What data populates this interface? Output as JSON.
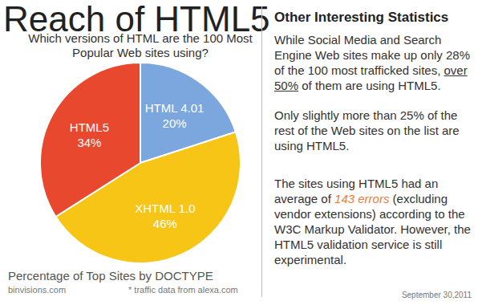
{
  "chart_data": {
    "type": "pie",
    "title": "Reach of HTML5",
    "subtitle": "Which versions of HTML are the 100 Most Popular Web sites using?",
    "categories": [
      "HTML 4.01",
      "XHTML 1.0",
      "HTML5"
    ],
    "values": [
      20,
      46,
      34
    ],
    "value_labels": [
      "20%",
      "46%",
      "34%"
    ],
    "colors": [
      "#7ba7de",
      "#f6c516",
      "#e8482d"
    ],
    "data_labels": true,
    "annotations": [
      "Percentage of Top Sites by DOCTYPE",
      "binvisions.com",
      "* traffic data from alexa.com"
    ]
  },
  "sidebar": {
    "title": "Other Interesting Statistics",
    "paragraphs": [
      [
        {
          "text": "While Social Media and Search Engine Web sites make up only 28% of the 100 most trafficked sites, "
        },
        {
          "text": "over 50%",
          "underline": true
        },
        {
          "text": " of them are using HTML5."
        }
      ],
      [
        {
          "text": "Only slightly more than 25% of the rest of the Web sites on the list are using HTML5."
        }
      ],
      [
        {
          "text": "The sites using HTML5 had an average of "
        },
        {
          "text": "143 errors",
          "color": "#f07a3a"
        },
        {
          "text": " (excluding vendor extensions) according to the W3C Markup Validator. However, the HTML5 validation service is still experimental."
        }
      ]
    ],
    "date": "September 30,2011"
  }
}
